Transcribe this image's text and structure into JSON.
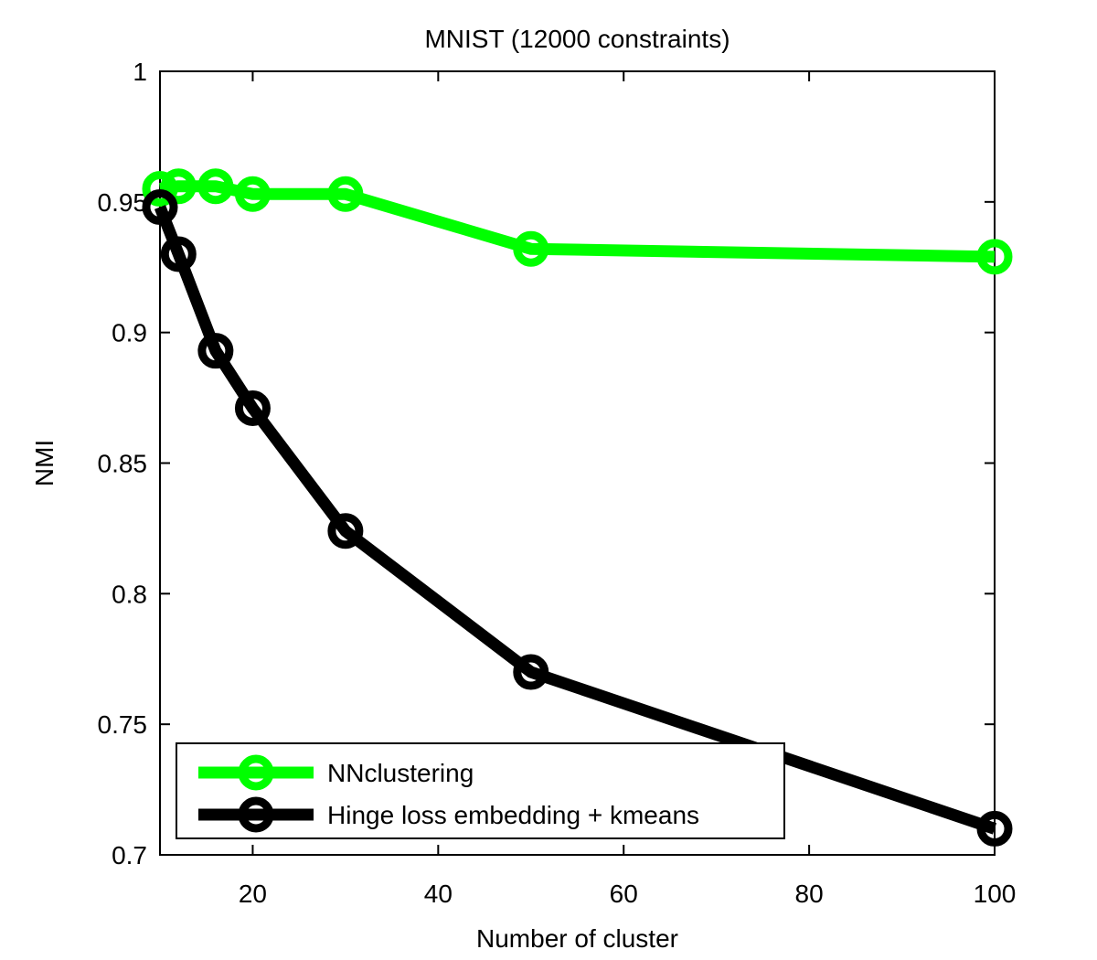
{
  "chart_data": {
    "type": "line",
    "title": "MNIST (12000 constraints)",
    "xlabel": "Number of cluster",
    "ylabel": "NMI",
    "xlim": [
      10,
      100
    ],
    "ylim": [
      0.7,
      1.0
    ],
    "xticks": [
      20,
      40,
      60,
      80,
      100
    ],
    "yticks": [
      0.7,
      0.75,
      0.8,
      0.85,
      0.9,
      0.95,
      1
    ],
    "ytick_labels": [
      "0.7",
      "0.75",
      "0.8",
      "0.85",
      "0.9",
      "0.95",
      "1"
    ],
    "xtick_labels": [
      "20",
      "40",
      "60",
      "80",
      "100"
    ],
    "grid": false,
    "legend_position": "bottom-left",
    "series": [
      {
        "name": "NNclustering",
        "color": "#00ff00",
        "marker": "circle",
        "x": [
          10,
          12,
          16,
          20,
          30,
          50,
          100
        ],
        "y": [
          0.955,
          0.956,
          0.956,
          0.953,
          0.953,
          0.932,
          0.929
        ]
      },
      {
        "name": "Hinge loss embedding + kmeans",
        "color": "#000000",
        "marker": "circle",
        "x": [
          10,
          12,
          16,
          20,
          30,
          50,
          100
        ],
        "y": [
          0.948,
          0.93,
          0.893,
          0.871,
          0.824,
          0.77,
          0.71
        ]
      }
    ]
  }
}
